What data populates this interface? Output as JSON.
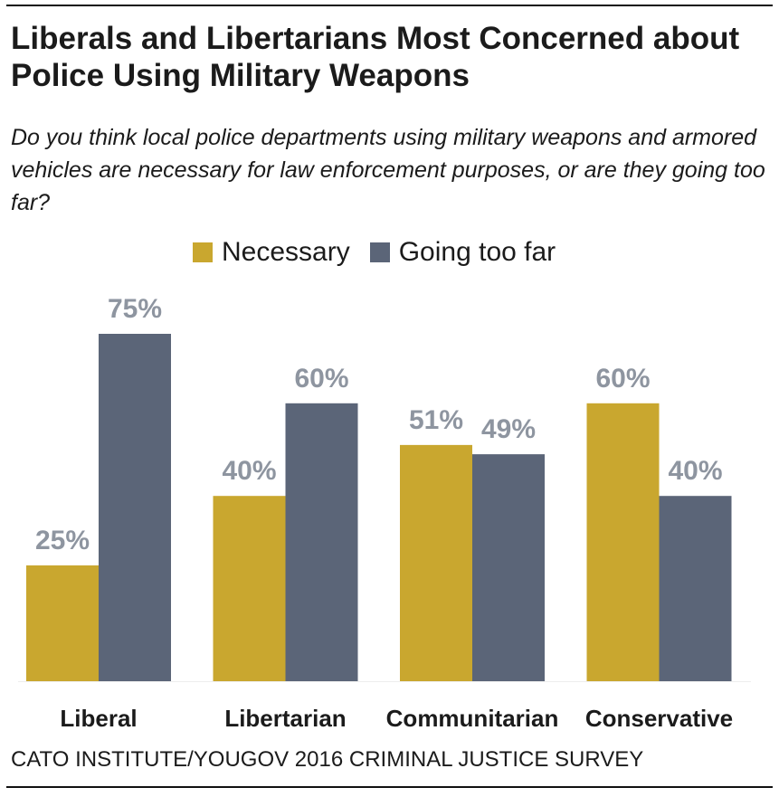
{
  "chart_data": {
    "type": "bar",
    "title": "Liberals and Libertarians Most Concerned about Police Using Military Weapons",
    "subtitle": "Do you think local police departments using military weapons and armored vehicles are necessary for law enforcement purposes, or are they going too far?",
    "categories": [
      "Liberal",
      "Libertarian",
      "Communitarian",
      "Conservative"
    ],
    "series": [
      {
        "name": "Necessary",
        "values": [
          25,
          40,
          51,
          60
        ],
        "color": "#C9A72F"
      },
      {
        "name": "Going too far",
        "values": [
          75,
          60,
          49,
          40
        ],
        "color": "#5B6578"
      }
    ],
    "data_labels": [
      [
        "25%",
        "40%",
        "51%",
        "60%"
      ],
      [
        "75%",
        "60%",
        "49%",
        "40%"
      ]
    ],
    "ylim": [
      0,
      100
    ],
    "grid": false,
    "legend": "top-center",
    "label_color": "#8E95A0",
    "source": "CATO INSTITUTE/YOUGOV 2016 CRIMINAL JUSTICE SURVEY"
  }
}
